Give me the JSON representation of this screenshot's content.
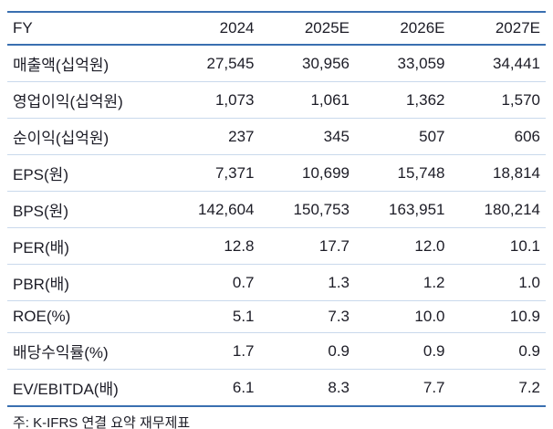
{
  "colors": {
    "accent_line": "#3a6fb0",
    "separator_line": "#c9d9ec",
    "text": "#1c1c26",
    "background": "#ffffff"
  },
  "table": {
    "header": [
      "FY",
      "2024",
      "2025E",
      "2026E",
      "2027E"
    ],
    "rows": [
      {
        "label": "매출액(십억원)",
        "values": [
          "27,545",
          "30,956",
          "33,059",
          "34,441"
        ]
      },
      {
        "label": "영업이익(십억원)",
        "values": [
          "1,073",
          "1,061",
          "1,362",
          "1,570"
        ]
      },
      {
        "label": "순이익(십억원)",
        "values": [
          "237",
          "345",
          "507",
          "606"
        ]
      },
      {
        "label": "EPS(원)",
        "values": [
          "7,371",
          "10,699",
          "15,748",
          "18,814"
        ]
      },
      {
        "label": "BPS(원)",
        "values": [
          "142,604",
          "150,753",
          "163,951",
          "180,214"
        ]
      },
      {
        "label": "PER(배)",
        "values": [
          "12.8",
          "17.7",
          "12.0",
          "10.1"
        ]
      },
      {
        "label": "PBR(배)",
        "values": [
          "0.7",
          "1.3",
          "1.2",
          "1.0"
        ]
      },
      {
        "label": "ROE(%)",
        "values": [
          "5.1",
          "7.3",
          "10.0",
          "10.9"
        ]
      },
      {
        "label": "배당수익률(%)",
        "values": [
          "1.7",
          "0.9",
          "0.9",
          "0.9"
        ]
      },
      {
        "label": "EV/EBITDA(배)",
        "values": [
          "6.1",
          "8.3",
          "7.7",
          "7.2"
        ]
      }
    ],
    "footnote": "주: K-IFRS 연결 요약 재무제표"
  }
}
